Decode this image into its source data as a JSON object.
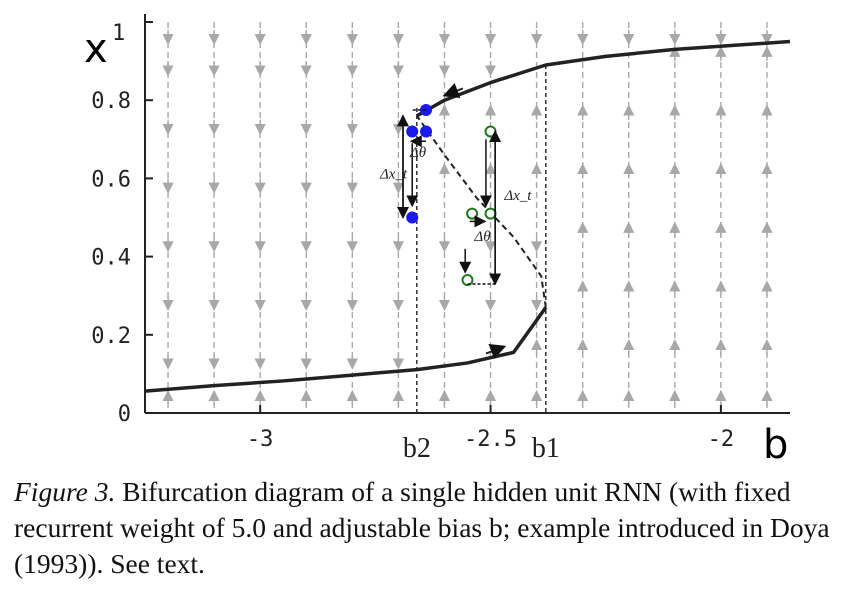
{
  "chart_data": {
    "type": "line",
    "title": "",
    "xlabel": "b",
    "ylabel": "x",
    "ylabel_extra": "1",
    "xlim": [
      -3.25,
      -1.85
    ],
    "ylim": [
      0,
      1
    ],
    "x_ticks": [
      {
        "value": -3,
        "label": "-3"
      },
      {
        "value": -2.5,
        "label": "-2.5"
      },
      {
        "value": -2,
        "label": "-2"
      }
    ],
    "y_ticks": [
      {
        "value": 0,
        "label": "0"
      },
      {
        "value": 0.2,
        "label": "0.2"
      },
      {
        "value": 0.4,
        "label": "0.4"
      },
      {
        "value": 0.6,
        "label": "0.6"
      },
      {
        "value": 0.8,
        "label": "0.8"
      }
    ],
    "x_markers": [
      {
        "value": -2.66,
        "label": "b2"
      },
      {
        "value": -2.38,
        "label": "b1"
      }
    ],
    "series": [
      {
        "style": "solid",
        "x": [
          -3.25,
          -3.1,
          -2.95,
          -2.8,
          -2.66,
          -2.55,
          -2.45,
          -2.38
        ],
        "y": [
          0.056,
          0.07,
          0.082,
          0.097,
          0.111,
          0.128,
          0.155,
          0.27
        ]
      },
      {
        "style": "dashed",
        "x": [
          -2.38,
          -2.39,
          -2.45,
          -2.53,
          -2.6,
          -2.66
        ],
        "y": [
          0.27,
          0.35,
          0.45,
          0.55,
          0.66,
          0.76
        ]
      },
      {
        "style": "solid",
        "x": [
          -2.66,
          -2.6,
          -2.5,
          -2.38,
          -2.25,
          -2.1,
          -1.95,
          -1.85
        ],
        "y": [
          0.76,
          0.8,
          0.845,
          0.89,
          0.912,
          0.93,
          0.942,
          0.95
        ]
      }
    ],
    "flow_lines_x": [
      -3.2,
      -3.1,
      -3.0,
      -2.9,
      -2.8,
      -2.7,
      -2.6,
      -2.5,
      -2.4,
      -2.3,
      -2.2,
      -2.1,
      -2.0,
      -1.9
    ],
    "annotations": [
      {
        "text": "Δx_t",
        "group": "blue"
      },
      {
        "text": "Δθ",
        "group": "blue"
      },
      {
        "text": "Δx_t",
        "group": "green"
      },
      {
        "text": "Δθ",
        "group": "green"
      }
    ],
    "point_groups": {
      "blue": {
        "color": "#1a1aee",
        "filled": true,
        "points": [
          [
            -2.64,
            0.775
          ],
          [
            -2.67,
            0.72
          ],
          [
            -2.64,
            0.72
          ],
          [
            -2.67,
            0.5
          ]
        ]
      },
      "green": {
        "color": "#1f7a1f",
        "filled": false,
        "points": [
          [
            -2.5,
            0.72
          ],
          [
            -2.54,
            0.51
          ],
          [
            -2.5,
            0.51
          ],
          [
            -2.55,
            0.34
          ]
        ]
      }
    },
    "grid": false,
    "legend": "none"
  },
  "caption": {
    "label": "Figure 3.",
    "text": " Bifurcation diagram of a single hidden unit RNN (with fixed recurrent weight of 5.0 and adjustable bias b; example introduced in Doya (1993)). See text."
  }
}
